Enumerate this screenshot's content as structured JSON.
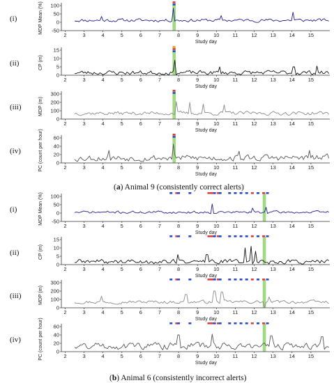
{
  "captions": [
    {
      "letter": "a",
      "text": " Animal 9 (consistently correct alerts)"
    },
    {
      "letter": "b",
      "text": " Animal 6 (consistently incorrect alerts)"
    }
  ],
  "colors": {
    "series_dark": "#1f1f8f",
    "series_black": "#111111",
    "series_gray": "#8a8a8a",
    "series_mid": "#555555",
    "highlight": "#8fd46f",
    "alert_red": "#e03a3a",
    "alert_blue": "#2c48c8",
    "alert_orange": "#f0a030"
  },
  "chart_data": [
    {
      "type": "line",
      "group": "a",
      "roman": "(i)",
      "xlabel": "Study day",
      "ylabel": "MDP Mean (%)",
      "xlim": [
        1.8,
        16.0
      ],
      "ylim": [
        -50,
        100
      ],
      "yticks": [
        -50,
        0,
        50,
        100
      ],
      "xticks": [
        2,
        3,
        4,
        5,
        6,
        7,
        8,
        9,
        10,
        11,
        12,
        13,
        14,
        15
      ],
      "color": "series_dark",
      "seed": 11,
      "base": 12,
      "amp": 15,
      "spikes": [
        [
          7.75,
          85
        ],
        [
          14.05,
          60
        ],
        [
          3.95,
          35
        ],
        [
          10.25,
          40
        ]
      ],
      "highlight": [
        7.68,
        7.85
      ],
      "alerts": [
        [
          7.76,
          "red"
        ],
        [
          7.76,
          "blue"
        ]
      ]
    },
    {
      "type": "line",
      "group": "a",
      "roman": "(ii)",
      "xlabel": "Study day",
      "ylabel": "CP (m)",
      "xlim": [
        1.8,
        16.0
      ],
      "ylim": [
        0,
        15
      ],
      "yticks": [
        0,
        5,
        10,
        15
      ],
      "xticks": [
        2,
        3,
        4,
        5,
        6,
        7,
        8,
        9,
        10,
        11,
        12,
        13,
        14,
        15
      ],
      "color": "series_black",
      "seed": 23,
      "base": 1.5,
      "amp": 2,
      "spikes": [
        [
          7.78,
          9
        ],
        [
          14.1,
          5
        ],
        [
          10.2,
          5
        ],
        [
          15.3,
          5.5
        ]
      ],
      "highlight": [
        7.68,
        7.85
      ],
      "alerts": [
        [
          7.76,
          "orange"
        ],
        [
          7.76,
          "red"
        ],
        [
          7.76,
          "blue"
        ]
      ]
    },
    {
      "type": "line",
      "group": "a",
      "roman": "(iii)",
      "xlabel": "Study day",
      "ylabel": "MDP (m)",
      "xlim": [
        1.8,
        16.0
      ],
      "ylim": [
        0,
        300
      ],
      "yticks": [
        0,
        100,
        200,
        300
      ],
      "xticks": [
        2,
        3,
        4,
        5,
        6,
        7,
        8,
        9,
        10,
        11,
        12,
        13,
        14,
        15
      ],
      "color": "series_gray",
      "seed": 37,
      "base": 70,
      "amp": 35,
      "spikes": [
        [
          7.9,
          210
        ],
        [
          8.6,
          200
        ],
        [
          9.3,
          180
        ],
        [
          10.4,
          170
        ]
      ],
      "highlight": [
        7.68,
        7.85
      ],
      "alerts": [
        [
          7.76,
          "red"
        ],
        [
          7.76,
          "blue"
        ]
      ]
    },
    {
      "type": "line",
      "group": "a",
      "roman": "(iv)",
      "xlabel": "Study day",
      "ylabel": "PC (count per hour)",
      "xlim": [
        1.8,
        16.0
      ],
      "ylim": [
        0,
        60
      ],
      "yticks": [
        0,
        20,
        40,
        60
      ],
      "xticks": [
        2,
        3,
        4,
        5,
        6,
        7,
        8,
        9,
        10,
        11,
        12,
        13,
        14,
        15
      ],
      "color": "series_mid",
      "seed": 53,
      "base": 12,
      "amp": 12,
      "spikes": [
        [
          7.75,
          45
        ],
        [
          4.3,
          30
        ],
        [
          11.2,
          28
        ],
        [
          14.9,
          30
        ]
      ],
      "highlight": [
        7.68,
        7.85
      ],
      "alerts": [
        [
          7.76,
          "red"
        ],
        [
          7.76,
          "blue"
        ]
      ]
    },
    {
      "type": "line",
      "group": "b",
      "roman": "(i)",
      "xlabel": "Study day",
      "ylabel": "MDP Mean (%)",
      "xlim": [
        1.8,
        16.0
      ],
      "ylim": [
        -50,
        100
      ],
      "yticks": [
        -50,
        0,
        50,
        100
      ],
      "xticks": [
        2,
        3,
        4,
        5,
        6,
        7,
        8,
        9,
        10,
        11,
        12,
        13,
        14,
        15
      ],
      "color": "series_dark",
      "seed": 71,
      "base": 5,
      "amp": 12,
      "spikes": [
        [
          9.8,
          55
        ],
        [
          11.9,
          30
        ],
        [
          12.6,
          35
        ]
      ],
      "highlight": [
        12.45,
        12.62
      ],
      "alerts": [
        [
          7.6,
          "blue"
        ],
        [
          7.9,
          "red"
        ],
        [
          8.0,
          "blue"
        ],
        [
          8.6,
          "blue"
        ],
        [
          9.6,
          "red"
        ],
        [
          9.75,
          "red"
        ],
        [
          9.9,
          "blue"
        ],
        [
          10.1,
          "red"
        ],
        [
          10.2,
          "blue"
        ],
        [
          10.7,
          "blue"
        ],
        [
          11.0,
          "blue"
        ],
        [
          11.3,
          "blue"
        ],
        [
          11.6,
          "blue"
        ],
        [
          11.9,
          "red"
        ],
        [
          12.2,
          "blue"
        ],
        [
          12.5,
          "red"
        ],
        [
          12.7,
          "blue"
        ]
      ]
    },
    {
      "type": "line",
      "group": "b",
      "roman": "(ii)",
      "xlabel": "Study day",
      "ylabel": "CP (m)",
      "xlim": [
        1.8,
        16.0
      ],
      "ylim": [
        0,
        15
      ],
      "yticks": [
        0,
        5,
        10,
        15
      ],
      "xticks": [
        2,
        3,
        4,
        5,
        6,
        7,
        8,
        9,
        10,
        11,
        12,
        13,
        14,
        15
      ],
      "color": "series_black",
      "seed": 89,
      "base": 1.8,
      "amp": 2.2,
      "spikes": [
        [
          7.95,
          6
        ],
        [
          11.5,
          10
        ],
        [
          11.85,
          11
        ],
        [
          12.1,
          8
        ],
        [
          9.5,
          6
        ]
      ],
      "highlight": [
        12.45,
        12.62
      ],
      "alerts": [
        [
          7.6,
          "blue"
        ],
        [
          7.9,
          "red"
        ],
        [
          8.0,
          "blue"
        ],
        [
          8.6,
          "blue"
        ],
        [
          9.6,
          "red"
        ],
        [
          9.75,
          "red"
        ],
        [
          9.9,
          "blue"
        ],
        [
          10.1,
          "red"
        ],
        [
          10.2,
          "blue"
        ],
        [
          10.7,
          "blue"
        ],
        [
          11.0,
          "blue"
        ],
        [
          11.3,
          "blue"
        ],
        [
          11.6,
          "blue"
        ],
        [
          11.9,
          "red"
        ],
        [
          12.2,
          "blue"
        ],
        [
          12.5,
          "red"
        ],
        [
          12.7,
          "blue"
        ]
      ]
    },
    {
      "type": "line",
      "group": "b",
      "roman": "(iii)",
      "xlabel": "Study day",
      "ylabel": "MDP (m)",
      "xlim": [
        1.8,
        16.0
      ],
      "ylim": [
        0,
        300
      ],
      "yticks": [
        0,
        100,
        200,
        300
      ],
      "xticks": [
        2,
        3,
        4,
        5,
        6,
        7,
        8,
        9,
        10,
        11,
        12,
        13,
        14,
        15
      ],
      "color": "series_gray",
      "seed": 97,
      "base": 70,
      "amp": 30,
      "spikes": [
        [
          9.9,
          200
        ],
        [
          10.3,
          190
        ],
        [
          8.4,
          160
        ],
        [
          12.8,
          130
        ],
        [
          3.9,
          140
        ]
      ],
      "dips": [
        [
          12.55,
          5
        ]
      ],
      "highlight": [
        12.45,
        12.62
      ],
      "alerts": [
        [
          7.6,
          "blue"
        ],
        [
          7.9,
          "red"
        ],
        [
          8.0,
          "blue"
        ],
        [
          8.6,
          "blue"
        ],
        [
          9.6,
          "red"
        ],
        [
          9.75,
          "red"
        ],
        [
          9.9,
          "blue"
        ],
        [
          10.1,
          "red"
        ],
        [
          10.2,
          "blue"
        ],
        [
          10.7,
          "blue"
        ],
        [
          11.0,
          "blue"
        ],
        [
          11.3,
          "blue"
        ],
        [
          11.6,
          "blue"
        ],
        [
          11.9,
          "red"
        ],
        [
          12.2,
          "blue"
        ],
        [
          12.5,
          "red"
        ],
        [
          12.7,
          "blue"
        ]
      ]
    },
    {
      "type": "line",
      "group": "b",
      "roman": "(iv)",
      "xlabel": "Study day",
      "ylabel": "PC (count per hour)",
      "xlim": [
        1.8,
        16.0
      ],
      "ylim": [
        0,
        60
      ],
      "yticks": [
        0,
        20,
        40,
        60
      ],
      "xticks": [
        2,
        3,
        4,
        5,
        6,
        7,
        8,
        9,
        10,
        11,
        12,
        13,
        14,
        15
      ],
      "color": "series_mid",
      "seed": 131,
      "base": 14,
      "amp": 13,
      "spikes": [
        [
          8.0,
          40
        ],
        [
          9.8,
          42
        ],
        [
          12.9,
          38
        ],
        [
          15.6,
          36
        ]
      ],
      "highlight": [
        12.45,
        12.62
      ],
      "alerts": [
        [
          7.6,
          "blue"
        ],
        [
          7.9,
          "red"
        ],
        [
          8.0,
          "blue"
        ],
        [
          8.6,
          "blue"
        ],
        [
          9.6,
          "red"
        ],
        [
          9.75,
          "red"
        ],
        [
          9.9,
          "blue"
        ],
        [
          10.1,
          "red"
        ],
        [
          10.2,
          "blue"
        ],
        [
          10.7,
          "blue"
        ],
        [
          11.0,
          "blue"
        ],
        [
          11.3,
          "blue"
        ],
        [
          11.6,
          "blue"
        ],
        [
          11.9,
          "red"
        ],
        [
          12.2,
          "blue"
        ],
        [
          12.5,
          "red"
        ],
        [
          12.7,
          "blue"
        ]
      ]
    }
  ]
}
